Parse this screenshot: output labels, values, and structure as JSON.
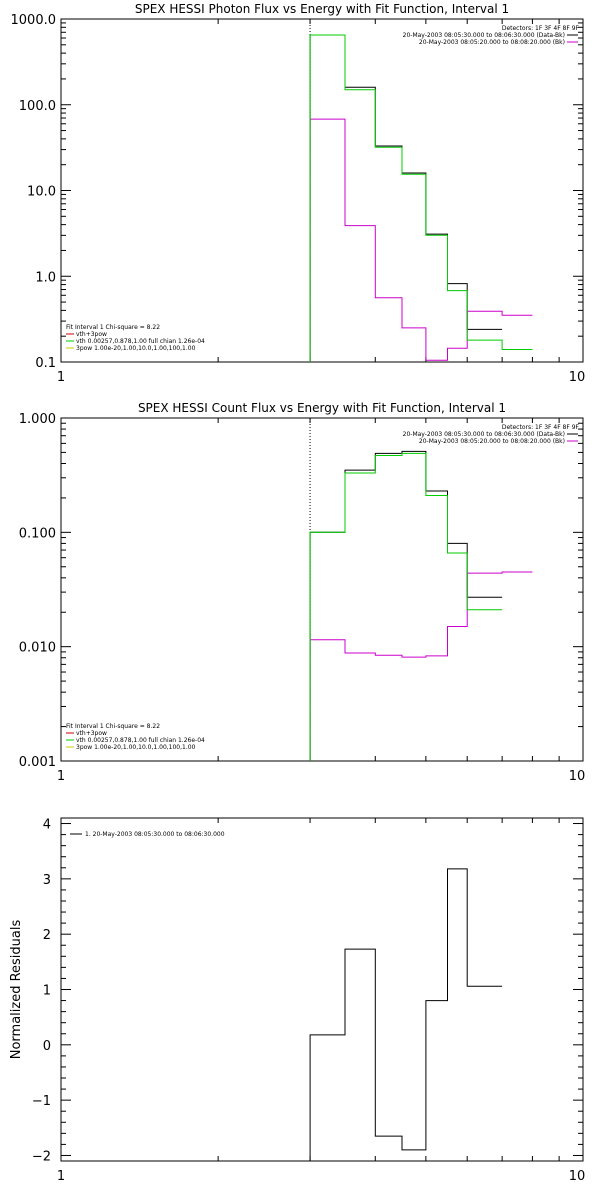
{
  "chart_data": [
    {
      "type": "line",
      "title": "SPEX HESSI Photon Flux vs Energy with Fit Function, Interval 1",
      "xlabel": "",
      "ylabel": "",
      "xlim": [
        1,
        10
      ],
      "ylim": [
        0.1,
        1000
      ],
      "xscale": "log",
      "yscale": "log",
      "x_ticks": [
        "1",
        "10"
      ],
      "y_ticks": [
        "0.1",
        "1.0",
        "10.0",
        "100.0",
        "1000.0"
      ],
      "grid": false,
      "legend_top": {
        "placement": "top-right",
        "header": "Detectors: 1F 3F 4F 8F 9F",
        "entries": [
          {
            "label": "20-May-2003 08:05:30.000 to 08:06:30.000 (Data-Bk)",
            "color": "#000000"
          },
          {
            "label": "20-May-2003 08:05:20.000 to 08:08:20.000 (Bk)",
            "color": "#cc00cc"
          }
        ]
      },
      "legend_fit": {
        "placement": "bottom-left",
        "header": "Fit Interval 1    Chi-square = 8.22",
        "entries": [
          {
            "label": "vth+3pow",
            "color": "#cc0000"
          },
          {
            "label": "vth 0.00257,0.878,1.00   full chian 1.26e-04",
            "color": "#00cc00"
          },
          {
            "label": "3pow 1.00e-20,1.00,10.0,1.00,100,1.00",
            "color": "#cccc00"
          }
        ]
      },
      "fit_start_x": 3.0,
      "series": [
        {
          "name": "20-May-2003 08:05:30.000 to 08:06:30.000 (Data-Bk)",
          "color": "#000000",
          "bins": [
            3,
            3.5,
            4,
            4.5,
            5,
            5.5,
            6,
            7,
            8,
            9,
            10
          ],
          "values": [
            650,
            160,
            33,
            16,
            3.1,
            0.82,
            0.24,
            null,
            null,
            null
          ]
        },
        {
          "name": "20-May-2003 08:05:20.000 to 08:08:20.000 (Bk)",
          "color": "#cc00cc",
          "bins": [
            3,
            3.5,
            4,
            4.5,
            5,
            5.5,
            6,
            7,
            8,
            9,
            10
          ],
          "values": [
            68,
            3.9,
            0.56,
            0.25,
            0.105,
            0.145,
            0.39,
            0.35,
            null,
            null
          ]
        },
        {
          "name": "vth+3pow",
          "color": "#00cc00",
          "bins": [
            3,
            3.5,
            4,
            4.5,
            5,
            5.5,
            6,
            7,
            8,
            9,
            10
          ],
          "values": [
            650,
            150,
            32,
            15.5,
            3.0,
            0.68,
            0.18,
            0.14,
            null,
            null
          ]
        }
      ]
    },
    {
      "type": "line",
      "title": "SPEX HESSI Count Flux vs Energy with Fit Function, Interval 1",
      "xlabel": "",
      "ylabel": "",
      "xlim": [
        1,
        10
      ],
      "ylim": [
        0.001,
        1
      ],
      "xscale": "log",
      "yscale": "log",
      "x_ticks": [
        "1",
        "10"
      ],
      "y_ticks": [
        "0.001",
        "0.010",
        "0.100",
        "1.000"
      ],
      "grid": false,
      "legend_top": {
        "placement": "top-right",
        "header": "Detectors: 1F 3F 4F 8F 9F",
        "entries": [
          {
            "label": "20-May-2003 08:05:30.000 to 08:06:30.000 (Data-Bk)",
            "color": "#000000"
          },
          {
            "label": "20-May-2003 08:05:20.000 to 08:08:20.000 (Bk)",
            "color": "#cc00cc"
          }
        ]
      },
      "legend_fit": {
        "placement": "bottom-left",
        "header": "Fit Interval 1    Chi-square = 8.22",
        "entries": [
          {
            "label": "vth+3pow",
            "color": "#cc0000"
          },
          {
            "label": "vth 0.00257,0.878,1.00   full chian 1.26e-04",
            "color": "#00cc00"
          },
          {
            "label": "3pow 1.00e-20,1.00,10.0,1.00,100,1.00",
            "color": "#cccc00"
          }
        ]
      },
      "fit_start_x": 3.0,
      "series": [
        {
          "name": "20-May-2003 08:05:30.000 to 08:06:30.000 (Data-Bk)",
          "color": "#000000",
          "bins": [
            3,
            3.5,
            4,
            4.5,
            5,
            5.5,
            6,
            7,
            8,
            9,
            10
          ],
          "values": [
            0.1,
            0.35,
            0.49,
            0.51,
            0.23,
            0.08,
            0.027,
            null,
            null,
            null
          ]
        },
        {
          "name": "20-May-2003 08:05:20.000 to 08:08:20.000 (Bk)",
          "color": "#cc00cc",
          "bins": [
            3,
            3.5,
            4,
            4.5,
            5,
            5.5,
            6,
            7,
            8,
            9,
            10
          ],
          "values": [
            0.0115,
            0.0088,
            0.0084,
            0.0081,
            0.0083,
            0.015,
            0.044,
            0.045,
            null,
            null
          ]
        },
        {
          "name": "vth+3pow",
          "color": "#00cc00",
          "bins": [
            3,
            3.5,
            4,
            4.5,
            5,
            5.5,
            6,
            7,
            8,
            9,
            10
          ],
          "values": [
            0.1,
            0.33,
            0.47,
            0.49,
            0.21,
            0.066,
            0.021,
            null,
            null,
            null
          ]
        }
      ]
    },
    {
      "type": "line",
      "title": "",
      "xlabel": "",
      "ylabel": "Normalized Residuals",
      "xlim": [
        1,
        10
      ],
      "ylim": [
        -2.1,
        4.1
      ],
      "xscale": "log",
      "yscale": "linear",
      "x_ticks": [
        "1",
        "10"
      ],
      "y_ticks": [
        "−2",
        "−1",
        "0",
        "1",
        "2",
        "3",
        "4"
      ],
      "grid": false,
      "legend": {
        "placement": "top-left",
        "entries": [
          {
            "label": "1. 20-May-2003 08:05:30.000 to 08:06:30.000",
            "color": "#000000"
          }
        ]
      },
      "series": [
        {
          "name": "1. 20-May-2003 08:05:30.000 to 08:06:30.000",
          "color": "#000000",
          "bins": [
            3,
            3.5,
            4,
            4.5,
            5,
            5.5,
            6,
            7,
            8,
            9,
            10
          ],
          "values": [
            0.18,
            1.73,
            -1.65,
            -1.9,
            0.8,
            3.18,
            1.06,
            null,
            null,
            null
          ]
        }
      ]
    }
  ]
}
